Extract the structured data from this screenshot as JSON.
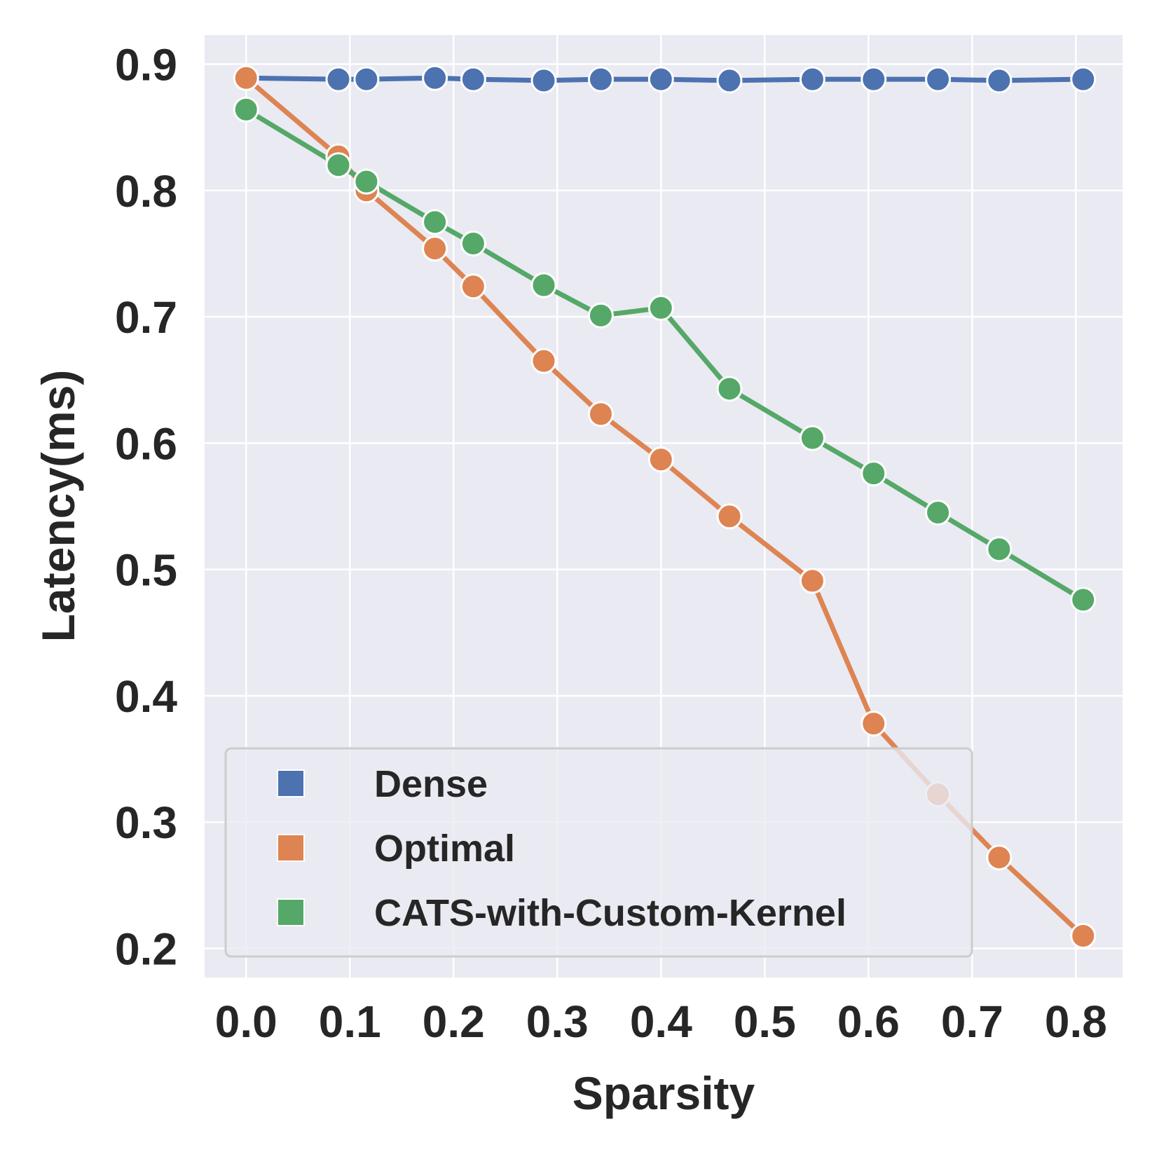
{
  "chart_data": {
    "type": "line",
    "title": "",
    "xlabel": "Sparsity",
    "ylabel": "Latency(ms)",
    "xlim": [
      -0.04,
      0.845
    ],
    "ylim": [
      0.177,
      0.923
    ],
    "xticks": [
      0.0,
      0.1,
      0.2,
      0.3,
      0.4,
      0.5,
      0.6,
      0.7,
      0.8
    ],
    "xtick_labels": [
      "0.0",
      "0.1",
      "0.2",
      "0.3",
      "0.4",
      "0.5",
      "0.6",
      "0.7",
      "0.8"
    ],
    "yticks": [
      0.2,
      0.3,
      0.4,
      0.5,
      0.6,
      0.7,
      0.8,
      0.9
    ],
    "ytick_labels": [
      "0.2",
      "0.3",
      "0.4",
      "0.5",
      "0.6",
      "0.7",
      "0.8",
      "0.9"
    ],
    "grid": true,
    "legend_position": "lower-left",
    "x": [
      0.0,
      0.089,
      0.116,
      0.182,
      0.219,
      0.287,
      0.342,
      0.4,
      0.466,
      0.546,
      0.605,
      0.667,
      0.726,
      0.807
    ],
    "series": [
      {
        "name": "Dense",
        "color": "#4c72b0",
        "values": [
          0.889,
          0.888,
          0.888,
          0.889,
          0.888,
          0.887,
          0.888,
          0.888,
          0.887,
          0.888,
          0.888,
          0.888,
          0.887,
          0.888
        ]
      },
      {
        "name": "Optimal",
        "color": "#dd8452",
        "values": [
          0.889,
          0.827,
          0.8,
          0.754,
          0.724,
          0.665,
          0.623,
          0.587,
          0.542,
          0.491,
          0.378,
          0.322,
          0.272,
          0.21
        ]
      },
      {
        "name": "CATS-with-Custom-Kernel",
        "color": "#55a868",
        "values": [
          0.864,
          0.82,
          0.807,
          0.775,
          0.758,
          0.725,
          0.701,
          0.707,
          0.643,
          0.604,
          0.576,
          0.545,
          0.516,
          0.476
        ]
      }
    ]
  }
}
